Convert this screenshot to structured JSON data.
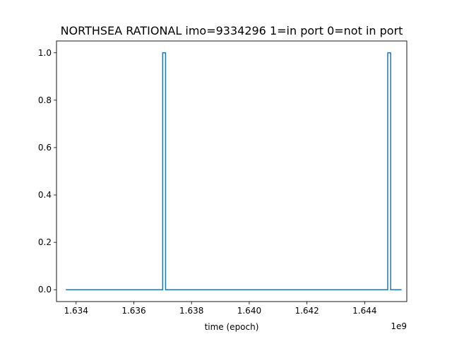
{
  "chart_data": {
    "type": "line",
    "title": "NORTHSEA RATIONAL imo=9334296 1=in port 0=not in port",
    "xlabel": "time (epoch)",
    "ylabel": "",
    "x_offset_label": "1e9",
    "xlim": [
      1.63332,
      1.64546
    ],
    "ylim": [
      -0.05,
      1.05
    ],
    "xticks": [
      1.634,
      1.636,
      1.638,
      1.64,
      1.642,
      1.644
    ],
    "xtick_labels": [
      "1.634",
      "1.636",
      "1.638",
      "1.640",
      "1.642",
      "1.644"
    ],
    "yticks": [
      0.0,
      0.2,
      0.4,
      0.6,
      0.8,
      1.0
    ],
    "ytick_labels": [
      "0.0",
      "0.2",
      "0.4",
      "0.6",
      "0.8",
      "1.0"
    ],
    "grid": false,
    "series": [
      {
        "color": "#1f77b4",
        "drawstyle": "steps-post",
        "x": [
          1.63364,
          1.637,
          1.63704,
          1.6371,
          1.6448,
          1.64484,
          1.6449,
          1.64528
        ],
        "y": [
          0,
          1,
          1,
          0,
          1,
          1,
          0,
          0
        ]
      }
    ]
  }
}
